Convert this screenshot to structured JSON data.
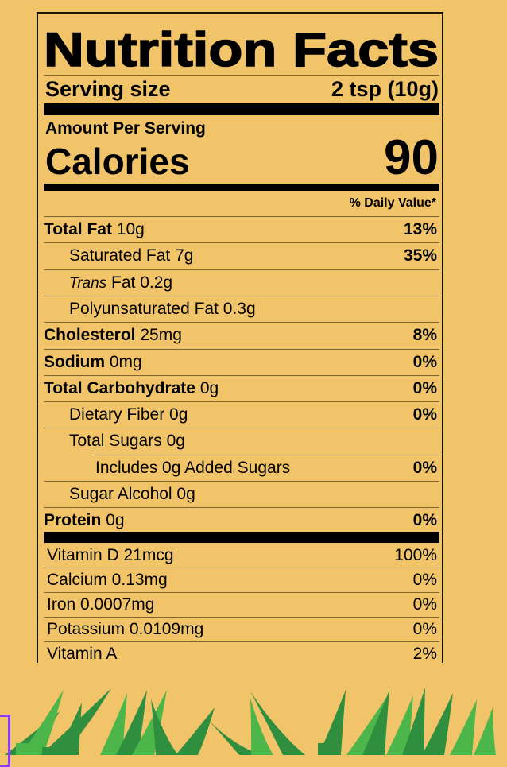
{
  "title": "Nutrition Facts",
  "serving": {
    "label": "Serving size",
    "value": "2 tsp (10g)"
  },
  "amount_per_serving": "Amount Per Serving",
  "calories": {
    "label": "Calories",
    "value": "90"
  },
  "daily_value_header": "% Daily Value*",
  "nutrients": [
    {
      "bold": "Total Fat",
      "amount": "10g",
      "dv": "13%",
      "indent": 0
    },
    {
      "bold": "",
      "amount": "Saturated Fat 7g",
      "dv": "35%",
      "indent": 1
    },
    {
      "italic": "Trans",
      "amount": "Fat 0.2g",
      "dv": "",
      "indent": 1
    },
    {
      "bold": "",
      "amount": "Polyunsaturated Fat 0.3g",
      "dv": "",
      "indent": 1
    },
    {
      "bold": "Cholesterol",
      "amount": "25mg",
      "dv": "8%",
      "indent": 0
    },
    {
      "bold": "Sodium",
      "amount": "0mg",
      "dv": "0%",
      "indent": 0
    },
    {
      "bold": "Total Carbohydrate",
      "amount": "0g",
      "dv": "0%",
      "indent": 0
    },
    {
      "bold": "",
      "amount": "Dietary Fiber 0g",
      "dv": "0%",
      "indent": 1
    },
    {
      "bold": "",
      "amount": "Total Sugars 0g",
      "dv": "",
      "indent": 1
    },
    {
      "bold": "",
      "amount": "Includes 0g Added Sugars",
      "dv": "0%",
      "indent": 2
    },
    {
      "bold": "",
      "amount": "Sugar Alcohol 0g",
      "dv": "",
      "indent": 1
    },
    {
      "bold": "Protein",
      "amount": "0g",
      "dv": "0%",
      "indent": 0
    }
  ],
  "vitamins": [
    {
      "name": "Vitamin D 21mcg",
      "dv": "100%"
    },
    {
      "name": "Calcium 0.13mg",
      "dv": "0%"
    },
    {
      "name": "Iron 0.0007mg",
      "dv": "0%"
    },
    {
      "name": "Potassium 0.0109mg",
      "dv": "0%"
    },
    {
      "name": "Vitamin A",
      "dv": "2%"
    }
  ],
  "colors": {
    "background": "#F2C46A",
    "grass_light": "#4CB64A",
    "grass_dark": "#2F8F3E",
    "selection": "#8B3DFF"
  }
}
